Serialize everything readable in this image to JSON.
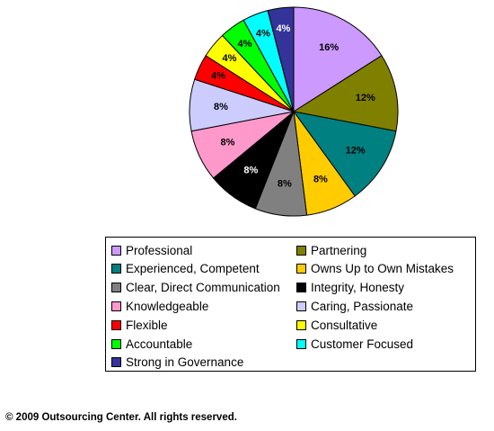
{
  "chart_data": {
    "type": "pie",
    "slices": [
      {
        "label": "Professional",
        "value": 16,
        "display": "16%",
        "color": "#cc99ff"
      },
      {
        "label": "Partnering",
        "value": 12,
        "display": "12%",
        "color": "#808000"
      },
      {
        "label": "Experienced, Competent",
        "value": 12,
        "display": "12%",
        "color": "#008080"
      },
      {
        "label": "Owns Up to Own Mistakes",
        "value": 8,
        "display": "8%",
        "color": "#ffcc00"
      },
      {
        "label": "Clear, Direct Communication",
        "value": 8,
        "display": "8%",
        "color": "#808080"
      },
      {
        "label": "Integrity, Honesty",
        "value": 8,
        "display": "8%",
        "color": "#000000"
      },
      {
        "label": "Knowledgeable",
        "value": 8,
        "display": "8%",
        "color": "#ff99cc"
      },
      {
        "label": "Caring, Passionate",
        "value": 8,
        "display": "8%",
        "color": "#ccccff"
      },
      {
        "label": "Flexible",
        "value": 4,
        "display": "4%",
        "color": "#ff0000"
      },
      {
        "label": "Consultative",
        "value": 4,
        "display": "4%",
        "color": "#ffff00"
      },
      {
        "label": "Accountable",
        "value": 4,
        "display": "4%",
        "color": "#00ff00"
      },
      {
        "label": "Customer Focused",
        "value": 4,
        "display": "4%",
        "color": "#00ffff"
      },
      {
        "label": "Strong in Governance",
        "value": 4,
        "display": "4%",
        "color": "#333399"
      }
    ],
    "start": "12 o'clock",
    "direction": "clockwise",
    "legend_position": "bottom",
    "legend_columns": 2
  },
  "footer": {
    "copyright": "© 2009 Outsourcing Center. All rights reserved."
  }
}
